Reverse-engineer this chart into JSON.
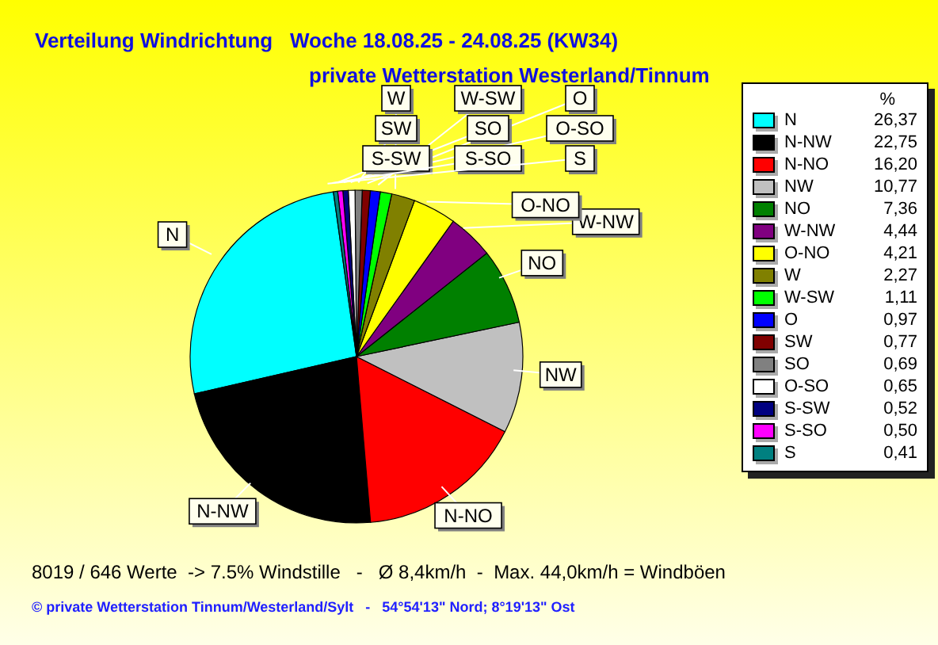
{
  "chart_data": {
    "type": "pie",
    "title": "Verteilung Windrichtung   Woche 18.08.25 - 24.08.25 (KW34)",
    "subtitle": "private Wetterstation Westerland/Tinnum",
    "legend_title": "%",
    "legend": "right",
    "categories": [
      "N",
      "N-NW",
      "N-NO",
      "NW",
      "NO",
      "W-NW",
      "O-NO",
      "W",
      "W-SW",
      "O",
      "SW",
      "SO",
      "O-SO",
      "S-SW",
      "S-SO",
      "S"
    ],
    "values": [
      26.37,
      22.75,
      16.2,
      10.77,
      7.36,
      4.44,
      4.21,
      2.27,
      1.11,
      0.97,
      0.77,
      0.69,
      0.65,
      0.52,
      0.5,
      0.41
    ],
    "value_labels": [
      "26,37",
      "22,75",
      "16,20",
      "10,77",
      "7,36",
      "4,44",
      "4,21",
      "2,27",
      "1,11",
      "0,97",
      "0,77",
      "0,69",
      "0,65",
      "0,52",
      "0,50",
      "0,41"
    ],
    "colors": [
      "#00ffff",
      "#000000",
      "#ff0000",
      "#c0c0c0",
      "#008000",
      "#800080",
      "#ffff00",
      "#808000",
      "#00ff00",
      "#0000ff",
      "#800000",
      "#808080",
      "#ffffff",
      "#000080",
      "#ff00ff",
      "#008080"
    ],
    "annotations": [
      "8019 / 646 Werte  -> 7.5% Windstille   -   Ø 8,4km/h  -  Max. 44,0km/h = Windböen",
      "© private Wetterstation Tinnum/Westerland/Sylt   -   54°54'13\" Nord; 8°19'13\" Ost"
    ]
  }
}
